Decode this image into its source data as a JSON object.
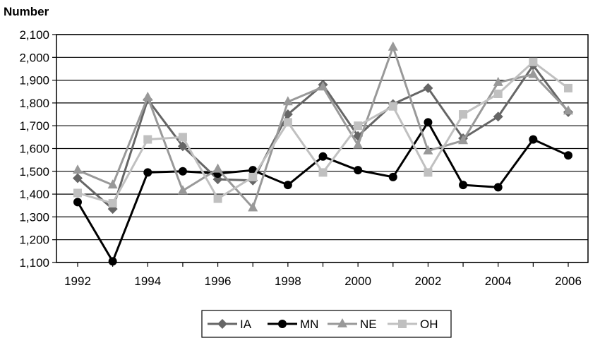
{
  "chart_data": {
    "type": "line",
    "title": "",
    "xlabel": "",
    "ylabel": "Number",
    "x": [
      1992,
      1993,
      1994,
      1995,
      1996,
      1997,
      1998,
      1999,
      2000,
      2001,
      2002,
      2003,
      2004,
      2005,
      2006
    ],
    "x_tick_labels": [
      "1992",
      "1994",
      "1996",
      "1998",
      "2000",
      "2002",
      "2004",
      "2006"
    ],
    "y_tick_labels": [
      "1,100",
      "1,200",
      "1,300",
      "1,400",
      "1,500",
      "1,600",
      "1,700",
      "1,800",
      "1,900",
      "2,000",
      "2,100"
    ],
    "ylim": [
      1100,
      2100
    ],
    "grid": true,
    "legend_position": "bottom",
    "series": [
      {
        "name": "IA",
        "color": "#666666",
        "marker": "diamond",
        "values": [
          1470,
          1335,
          1815,
          1610,
          1465,
          1460,
          1750,
          1880,
          1655,
          1795,
          1865,
          1645,
          1740,
          1965,
          1760
        ]
      },
      {
        "name": "MN",
        "color": "#000000",
        "marker": "circle",
        "values": [
          1365,
          1105,
          1495,
          1500,
          1490,
          1505,
          1440,
          1565,
          1505,
          1475,
          1715,
          1440,
          1430,
          1640,
          1570
        ]
      },
      {
        "name": "NE",
        "color": "#999999",
        "marker": "triangle",
        "values": [
          1505,
          1440,
          1825,
          1415,
          1510,
          1340,
          1805,
          1870,
          1615,
          2045,
          1590,
          1635,
          1890,
          1925,
          1765
        ]
      },
      {
        "name": "OH",
        "color": "#c0c0c0",
        "marker": "square",
        "values": [
          1405,
          1360,
          1640,
          1650,
          1380,
          1475,
          1715,
          1495,
          1700,
          1785,
          1495,
          1750,
          1840,
          1980,
          1865
        ]
      }
    ]
  }
}
